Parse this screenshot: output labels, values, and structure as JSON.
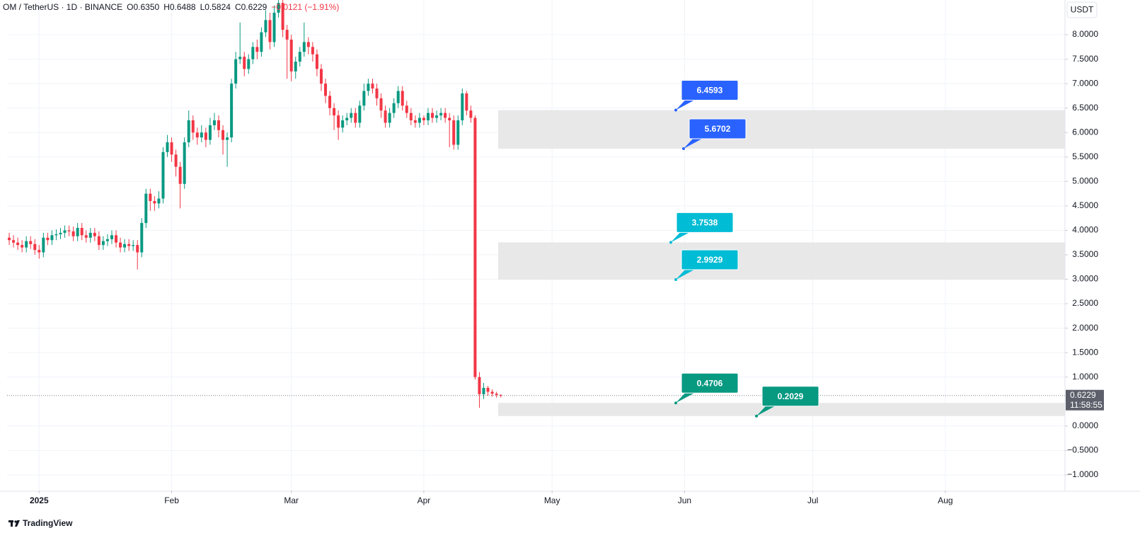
{
  "chart_data": {
    "type": "candlestick",
    "title": "OM / TetherUS · 1D · BINANCE",
    "ohlc_labels": [
      "O0.6350",
      "H0.6488",
      "L0.5824",
      "C0.6229",
      "−0.0121 (−1.91%)"
    ],
    "currency": "USDT",
    "last_price_label": "0.6229",
    "countdown": "11:58:55",
    "watermark": "TradingView",
    "up_color": "#089981",
    "down_color": "#f23645",
    "grid": true,
    "x": [
      0,
      1,
      2,
      3,
      4,
      5,
      6,
      7,
      8,
      9,
      10,
      11,
      12,
      13,
      14,
      15,
      16,
      17,
      18,
      19,
      20,
      21,
      22,
      23,
      24,
      25,
      26,
      27,
      28,
      29,
      30,
      31,
      32,
      33,
      34,
      35,
      36,
      37,
      38,
      39,
      40,
      41,
      42,
      43,
      44,
      45,
      46,
      47,
      48,
      49,
      50,
      51,
      52,
      53,
      54,
      55,
      56,
      57,
      58,
      59,
      60,
      61,
      62,
      63,
      64,
      65,
      66,
      67,
      68,
      69,
      70,
      71,
      72,
      73,
      74,
      75,
      76,
      77,
      78,
      79,
      80,
      81,
      82,
      83,
      84,
      85,
      86,
      87,
      88,
      89,
      90,
      91,
      92,
      93,
      94,
      95,
      96,
      97,
      98,
      99,
      100,
      101,
      102,
      103,
      104,
      105,
      106,
      107,
      108,
      109,
      110,
      111,
      112,
      113,
      114,
      115
    ],
    "open": [
      3.85,
      3.8,
      3.75,
      3.7,
      3.65,
      3.78,
      3.72,
      3.6,
      3.55,
      3.85,
      3.8,
      3.9,
      3.92,
      3.95,
      4.0,
      3.98,
      3.88,
      4.05,
      3.9,
      3.85,
      3.95,
      3.88,
      3.7,
      3.78,
      3.82,
      3.9,
      3.75,
      3.65,
      3.72,
      3.68,
      3.7,
      3.55,
      4.15,
      4.75,
      4.6,
      4.55,
      4.65,
      5.6,
      5.8,
      5.55,
      5.3,
      4.95,
      5.8,
      6.25,
      6.0,
      5.9,
      6.0,
      5.85,
      6.15,
      6.25,
      6.05,
      5.85,
      5.9,
      7.0,
      7.5,
      7.55,
      7.3,
      7.5,
      7.75,
      7.65,
      8.05,
      8.3,
      7.85,
      8.45,
      8.65,
      8.1,
      7.9,
      7.25,
      7.45,
      7.65,
      7.85,
      7.75,
      7.6,
      7.3,
      7.0,
      6.75,
      6.5,
      6.35,
      6.1,
      6.25,
      6.3,
      6.4,
      6.2,
      6.55,
      6.85,
      7.0,
      6.9,
      6.7,
      6.45,
      6.2,
      6.4,
      6.6,
      6.85,
      6.55,
      6.4,
      6.25,
      6.2,
      6.3,
      6.25,
      6.4,
      6.3,
      6.35,
      6.4,
      6.3,
      6.25,
      5.75,
      6.25,
      6.8,
      6.45,
      6.3,
      1.0,
      0.65,
      0.78,
      0.7,
      0.66,
      0.635
    ],
    "high": [
      3.95,
      3.9,
      3.85,
      3.8,
      3.88,
      3.88,
      3.82,
      3.7,
      3.95,
      3.95,
      4.0,
      4.02,
      4.05,
      4.1,
      4.1,
      4.08,
      4.15,
      4.15,
      4.0,
      4.05,
      4.05,
      3.98,
      3.88,
      3.92,
      4.0,
      4.0,
      3.85,
      3.82,
      3.82,
      3.8,
      3.8,
      4.25,
      4.85,
      4.85,
      4.7,
      4.8,
      5.7,
      5.95,
      5.9,
      5.65,
      5.4,
      5.9,
      6.45,
      6.35,
      6.1,
      6.15,
      6.1,
      6.3,
      6.4,
      6.35,
      6.15,
      6.0,
      7.1,
      7.65,
      8.25,
      7.65,
      7.6,
      7.85,
      7.9,
      8.15,
      8.5,
      8.45,
      8.6,
      8.75,
      8.75,
      8.2,
      8.0,
      7.55,
      7.75,
      8.25,
      7.95,
      7.85,
      7.7,
      7.4,
      7.1,
      6.85,
      6.6,
      6.45,
      6.35,
      6.4,
      6.5,
      6.5,
      6.65,
      7.0,
      7.1,
      7.1,
      7.0,
      6.8,
      6.55,
      6.5,
      6.7,
      6.95,
      6.95,
      6.65,
      6.5,
      6.35,
      6.4,
      6.35,
      6.5,
      6.5,
      6.45,
      6.5,
      6.5,
      6.4,
      6.35,
      6.35,
      6.9,
      6.85,
      6.55,
      6.35,
      1.1,
      0.88,
      0.82,
      0.75,
      0.7,
      0.6488
    ],
    "low": [
      3.7,
      3.65,
      3.6,
      3.55,
      3.55,
      3.62,
      3.5,
      3.42,
      3.45,
      3.7,
      3.7,
      3.8,
      3.82,
      3.85,
      3.88,
      3.78,
      3.78,
      3.8,
      3.75,
      3.75,
      3.78,
      3.6,
      3.6,
      3.68,
      3.72,
      3.65,
      3.55,
      3.55,
      3.58,
      3.58,
      3.2,
      3.45,
      4.05,
      4.4,
      4.4,
      4.45,
      4.55,
      5.5,
      5.4,
      5.1,
      4.45,
      4.85,
      5.7,
      5.85,
      5.75,
      5.8,
      5.7,
      5.75,
      6.05,
      5.9,
      5.55,
      5.3,
      5.8,
      6.9,
      7.4,
      7.15,
      7.2,
      7.4,
      7.5,
      7.55,
      7.95,
      7.7,
      7.75,
      8.35,
      7.95,
      7.1,
      7.05,
      7.1,
      7.35,
      7.55,
      7.6,
      7.45,
      7.15,
      6.85,
      6.6,
      6.35,
      6.05,
      5.85,
      6.0,
      6.15,
      6.2,
      6.1,
      6.1,
      6.45,
      6.75,
      6.8,
      6.55,
      6.3,
      6.1,
      6.1,
      6.3,
      6.5,
      6.45,
      6.3,
      6.15,
      6.1,
      6.1,
      6.15,
      6.15,
      6.2,
      6.2,
      6.25,
      6.2,
      5.7,
      5.65,
      5.65,
      6.15,
      6.35,
      6.2,
      0.95,
      0.37,
      0.55,
      0.62,
      0.6,
      0.58,
      0.5824
    ],
    "close": [
      3.8,
      3.75,
      3.7,
      3.65,
      3.78,
      3.72,
      3.6,
      3.55,
      3.85,
      3.8,
      3.9,
      3.92,
      3.95,
      4.0,
      3.98,
      3.88,
      4.05,
      3.9,
      3.85,
      3.95,
      3.88,
      3.7,
      3.78,
      3.82,
      3.9,
      3.75,
      3.65,
      3.72,
      3.68,
      3.7,
      3.55,
      4.15,
      4.75,
      4.6,
      4.55,
      4.65,
      5.6,
      5.8,
      5.55,
      5.3,
      4.95,
      5.8,
      6.25,
      6.0,
      5.9,
      6.0,
      5.85,
      6.15,
      6.25,
      6.05,
      5.85,
      5.9,
      7.0,
      7.5,
      7.55,
      7.3,
      7.5,
      7.75,
      7.65,
      8.05,
      8.3,
      7.85,
      8.45,
      8.65,
      8.1,
      7.9,
      7.25,
      7.45,
      7.65,
      7.85,
      7.75,
      7.6,
      7.3,
      7.0,
      6.75,
      6.5,
      6.35,
      6.1,
      6.25,
      6.3,
      6.4,
      6.2,
      6.55,
      6.85,
      7.0,
      6.9,
      6.7,
      6.45,
      6.2,
      6.4,
      6.6,
      6.85,
      6.55,
      6.4,
      6.25,
      6.2,
      6.3,
      6.25,
      6.4,
      6.3,
      6.35,
      6.4,
      6.3,
      6.25,
      5.75,
      6.25,
      6.8,
      6.45,
      6.3,
      1.0,
      0.65,
      0.78,
      0.7,
      0.66,
      0.635,
      0.6229
    ],
    "xlim": [
      -0.5,
      247
    ],
    "xticks": [
      {
        "value": 7,
        "label": "2025"
      },
      {
        "value": 38,
        "label": "Feb"
      },
      {
        "value": 66,
        "label": "Mar"
      },
      {
        "value": 97,
        "label": "Apr"
      },
      {
        "value": 127,
        "label": "May"
      },
      {
        "value": 158,
        "label": "Jun"
      },
      {
        "value": 188,
        "label": "Jul"
      },
      {
        "value": 219,
        "label": "Aug"
      }
    ],
    "ylim": [
      -1.32,
      8.71
    ],
    "yticks": [
      {
        "value": 8,
        "label": "8.0000"
      },
      {
        "value": 7.5,
        "label": "7.5000"
      },
      {
        "value": 7,
        "label": "7.0000"
      },
      {
        "value": 6.5,
        "label": "6.5000"
      },
      {
        "value": 6,
        "label": "6.0000"
      },
      {
        "value": 5.5,
        "label": "5.5000"
      },
      {
        "value": 5,
        "label": "5.0000"
      },
      {
        "value": 4.5,
        "label": "4.5000"
      },
      {
        "value": 4,
        "label": "4.0000"
      },
      {
        "value": 3.5,
        "label": "3.5000"
      },
      {
        "value": 3,
        "label": "3.0000"
      },
      {
        "value": 2.5,
        "label": "2.5000"
      },
      {
        "value": 2,
        "label": "2.0000"
      },
      {
        "value": 1.5,
        "label": "1.5000"
      },
      {
        "value": 1,
        "label": "1.0000"
      },
      {
        "value": 0,
        "label": "0.0000"
      },
      {
        "value": -0.5,
        "label": "−0.5000"
      },
      {
        "value": -1,
        "label": "−1.0000"
      }
    ],
    "zones": [
      {
        "high": 6.4593,
        "low": 5.6702,
        "label_color": "#2962ff"
      },
      {
        "high": 3.7538,
        "low": 2.9929,
        "label_color": "#00bcd4"
      },
      {
        "high": 0.4706,
        "low": 0.2029,
        "label_color": "#089981"
      }
    ]
  }
}
